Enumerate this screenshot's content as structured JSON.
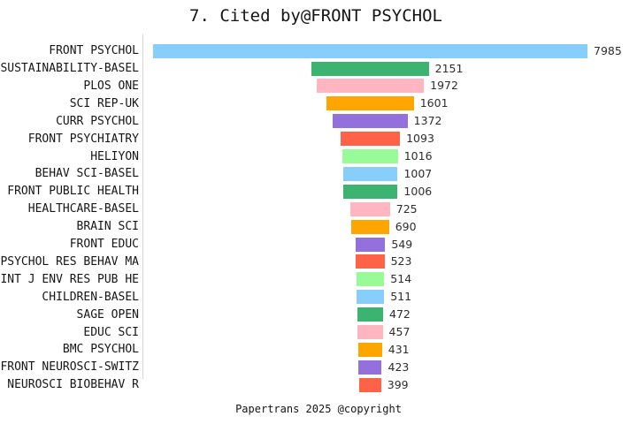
{
  "title": "7. Cited by@FRONT PSYCHOL",
  "footer": "Papertrans 2025 @copyright",
  "chart_data": {
    "type": "bar",
    "orientation": "horizontal-centered",
    "title": "7. Cited by@FRONT PSYCHOL",
    "xlabel": "",
    "ylabel": "",
    "grid": false,
    "legend": false,
    "value_labels": "right-of-bar",
    "categories": [
      "FRONT PSYCHOL",
      "SUSTAINABILITY-BASEL",
      "PLOS ONE",
      "SCI REP-UK",
      "CURR PSYCHOL",
      "FRONT PSYCHIATRY",
      "HELIYON",
      "BEHAV SCI-BASEL",
      "FRONT PUBLIC HEALTH",
      "HEALTHCARE-BASEL",
      "BRAIN SCI",
      "FRONT EDUC",
      "PSYCHOL RES BEHAV MA",
      "INT J ENV RES PUB HE",
      "CHILDREN-BASEL",
      "SAGE OPEN",
      "EDUC SCI",
      "BMC PSYCHOL",
      "FRONT NEUROSCI-SWITZ",
      "NEUROSCI BIOBEHAV R"
    ],
    "values": [
      7985,
      2151,
      1972,
      1601,
      1372,
      1093,
      1016,
      1007,
      1006,
      725,
      690,
      549,
      523,
      514,
      511,
      472,
      457,
      431,
      423,
      399
    ],
    "palette": [
      "#87CEFA",
      "#3CB371",
      "#FFB6C1",
      "#FFA500",
      "#9370DB",
      "#FF6347",
      "#98FB98"
    ],
    "axis_line_color": "#d6d6d6",
    "text_color": "#161616",
    "background_color": "#ffffff"
  }
}
